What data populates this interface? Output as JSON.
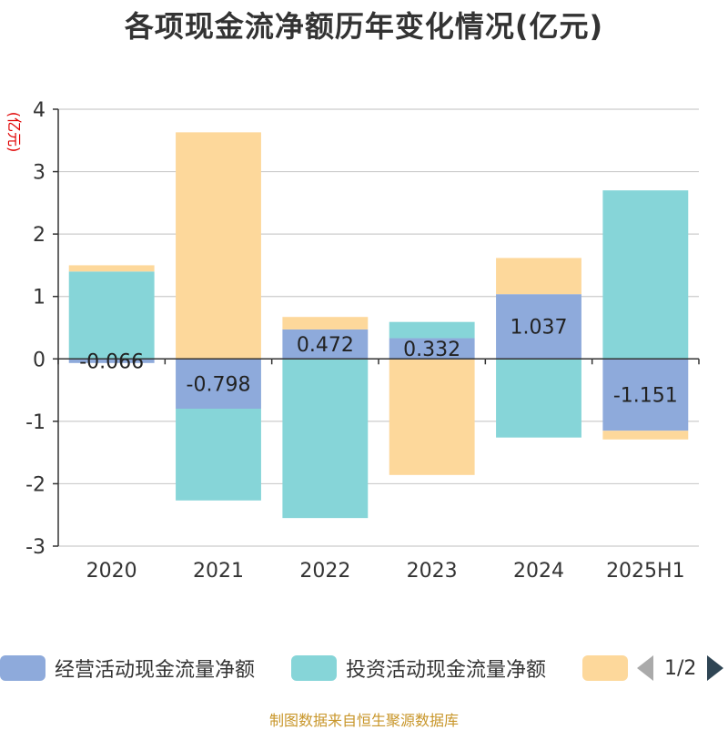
{
  "title": "各项现金流净额历年变化情况(亿元)",
  "source": "制图数据来自恒生聚源数据库",
  "legend_pager": "1/2",
  "colors": {
    "operating": "#8eaadb",
    "investing": "#86d5d8",
    "financing": "#fdd89b",
    "axis": "#333333",
    "grid": "#cccccc",
    "unit_label": "#e00000"
  },
  "chart_data": {
    "type": "bar",
    "stacked": true,
    "ylabel": "(亿元)",
    "ylim": [
      -3,
      4
    ],
    "yticks": [
      4,
      3,
      2,
      1,
      0,
      -1,
      -2,
      -3
    ],
    "categories": [
      "2020",
      "2021",
      "2022",
      "2023",
      "2024",
      "2025H1"
    ],
    "series": [
      {
        "name": "经营活动现金流量净额",
        "color": "#8eaadb",
        "values": [
          -0.066,
          -0.798,
          0.472,
          0.332,
          1.037,
          -1.151
        ],
        "labels": [
          "-0.066",
          "-0.798",
          "0.472",
          "0.332",
          "1.037",
          "-1.151"
        ]
      },
      {
        "name": "投资活动现金流量净额",
        "color": "#86d5d8",
        "values": [
          1.4,
          -1.47,
          -2.55,
          0.26,
          -1.26,
          2.7
        ]
      },
      {
        "name": "",
        "color": "#fdd89b",
        "values": [
          0.1,
          3.63,
          0.2,
          -1.86,
          0.58,
          -0.14
        ]
      }
    ],
    "grid": true,
    "legend_position": "bottom"
  }
}
